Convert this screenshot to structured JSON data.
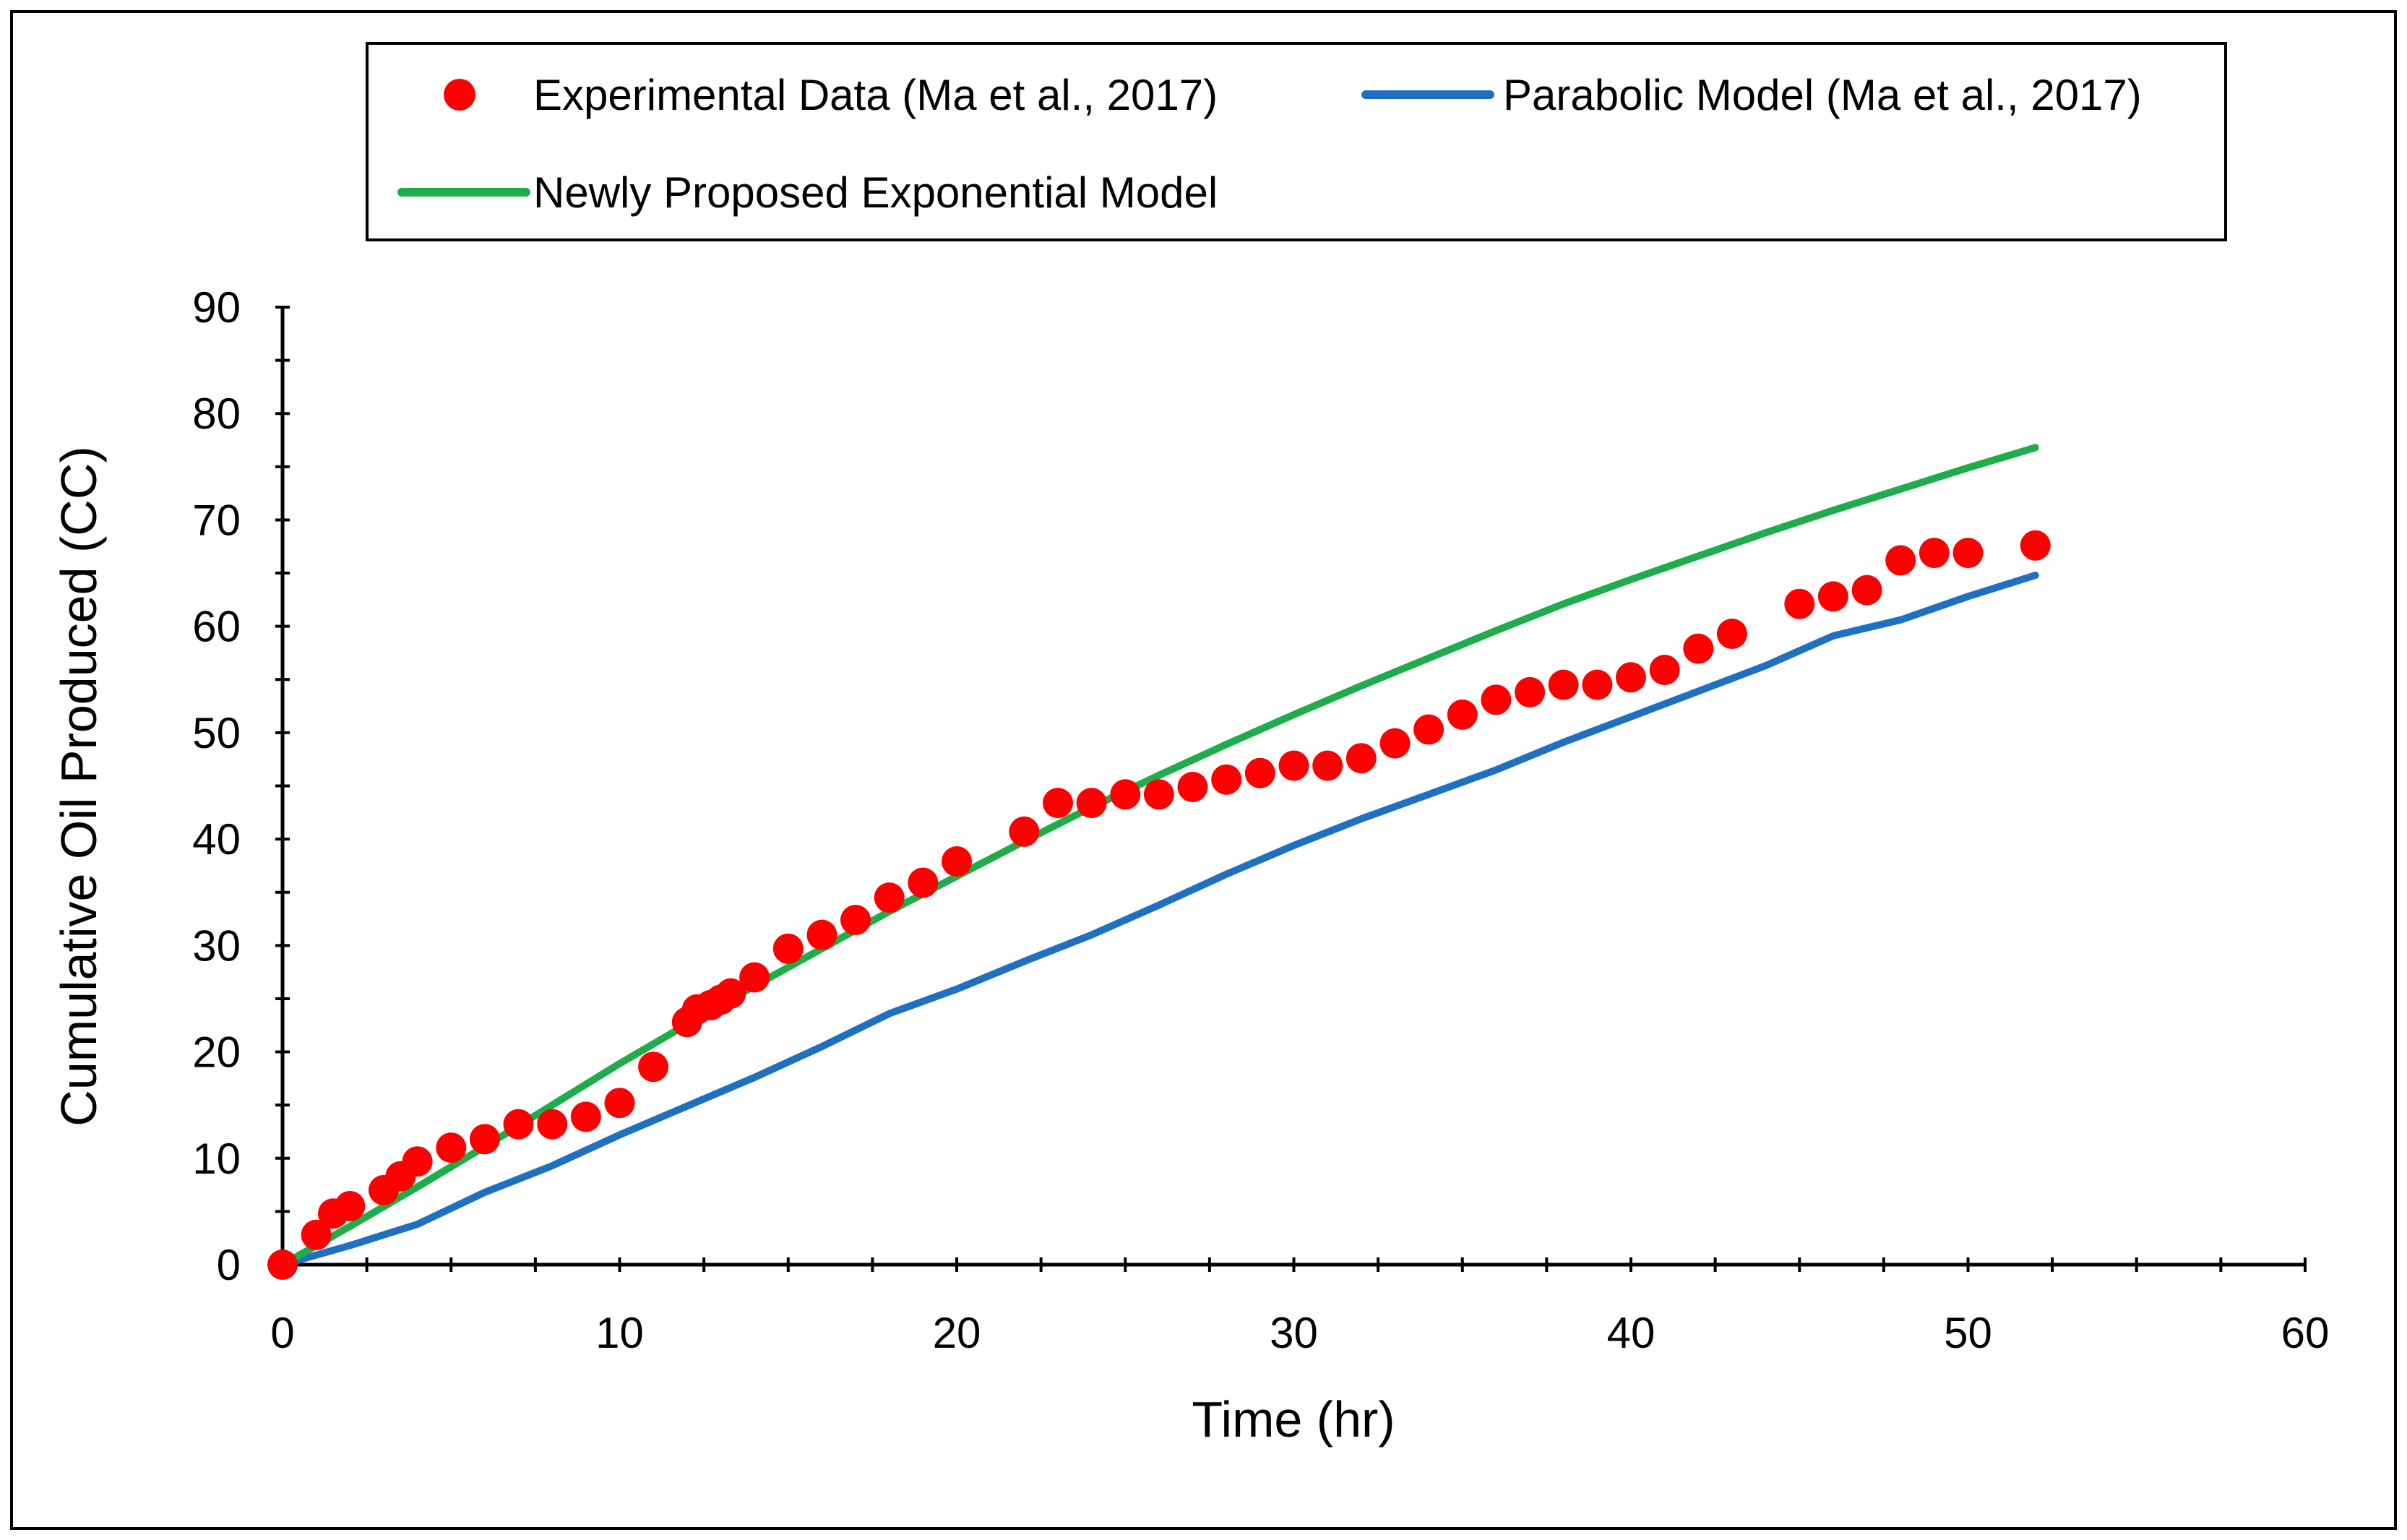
{
  "chart_data": {
    "type": "scatter",
    "title": "",
    "xlabel": "Time (hr)",
    "ylabel": "Cumulative Oil Produced (CC)",
    "xlim": [
      0,
      60
    ],
    "ylim": [
      0,
      90
    ],
    "x_ticks": [
      "0",
      "10",
      "20",
      "30",
      "40",
      "50",
      "60"
    ],
    "y_ticks": [
      "0",
      "10",
      "20",
      "30",
      "40",
      "50",
      "60",
      "70",
      "80",
      "90"
    ],
    "grid": false,
    "legend_position": "top",
    "series": [
      {
        "name": "Experimental Data (Ma et al., 2017)",
        "kind": "points",
        "color": "#ff0000",
        "x": [
          0,
          1,
          1.5,
          2,
          3,
          3.5,
          4,
          5,
          6,
          7,
          8,
          9,
          10,
          11,
          12,
          12.3,
          12.7,
          13,
          13.3,
          14,
          15,
          16,
          17,
          18,
          19,
          20,
          22,
          23,
          24,
          25,
          26,
          27,
          28,
          29,
          30,
          31,
          32,
          33,
          34,
          35,
          36,
          37,
          38,
          39,
          40,
          41,
          42,
          43,
          45,
          46,
          47,
          48,
          49,
          50,
          52
        ],
        "y": [
          0,
          2.8,
          4.8,
          5.5,
          7,
          8.3,
          9.7,
          11,
          11.8,
          13.2,
          13.2,
          13.9,
          15.2,
          18.6,
          22.8,
          24,
          24.4,
          24.9,
          25.5,
          27,
          29.7,
          31,
          32.4,
          34.5,
          35.9,
          37.9,
          40.7,
          43.4,
          43.4,
          44.2,
          44.2,
          44.9,
          45.6,
          46.2,
          46.9,
          46.9,
          47.6,
          49,
          50.3,
          51.7,
          53.1,
          53.8,
          54.5,
          54.5,
          55.2,
          55.9,
          57.9,
          59.3,
          62.1,
          62.8,
          63.4,
          66.2,
          66.9,
          66.9,
          67.6
        ]
      },
      {
        "name": "Parabolic Model (Ma et al., 2017)",
        "kind": "line",
        "color": "#1f70c1",
        "x": [
          0,
          2,
          4,
          6,
          8,
          10,
          12,
          14,
          16,
          18,
          20,
          22,
          24,
          26,
          28,
          30,
          32,
          34,
          36,
          38,
          40,
          42,
          44,
          46,
          48,
          50,
          52
        ],
        "y": [
          0,
          1.8,
          3.8,
          6.8,
          9.3,
          12.2,
          14.9,
          17.6,
          20.5,
          23.6,
          25.9,
          28.5,
          31,
          33.8,
          36.7,
          39.4,
          41.9,
          44.2,
          46.5,
          49.1,
          51.5,
          53.9,
          56.3,
          59.1,
          60.6,
          62.8,
          64.8
        ]
      },
      {
        "name": "Newly Proposed Exponential Model",
        "kind": "line",
        "color": "#1fad4b",
        "x": [
          0,
          2,
          4,
          6,
          8,
          10,
          12,
          14,
          16,
          18,
          20,
          22,
          24,
          26,
          28,
          30,
          32,
          34,
          36,
          38,
          40,
          42,
          44,
          46,
          48,
          50,
          52
        ],
        "y": [
          0,
          3.6,
          7.3,
          11.1,
          15,
          18.9,
          22.6,
          26.2,
          29.7,
          33.2,
          36.5,
          39.8,
          43,
          46,
          48.9,
          51.7,
          54.4,
          57,
          59.6,
          62.1,
          64.4,
          66.6,
          68.8,
          70.9,
          72.9,
          74.9,
          76.8
        ]
      }
    ]
  }
}
